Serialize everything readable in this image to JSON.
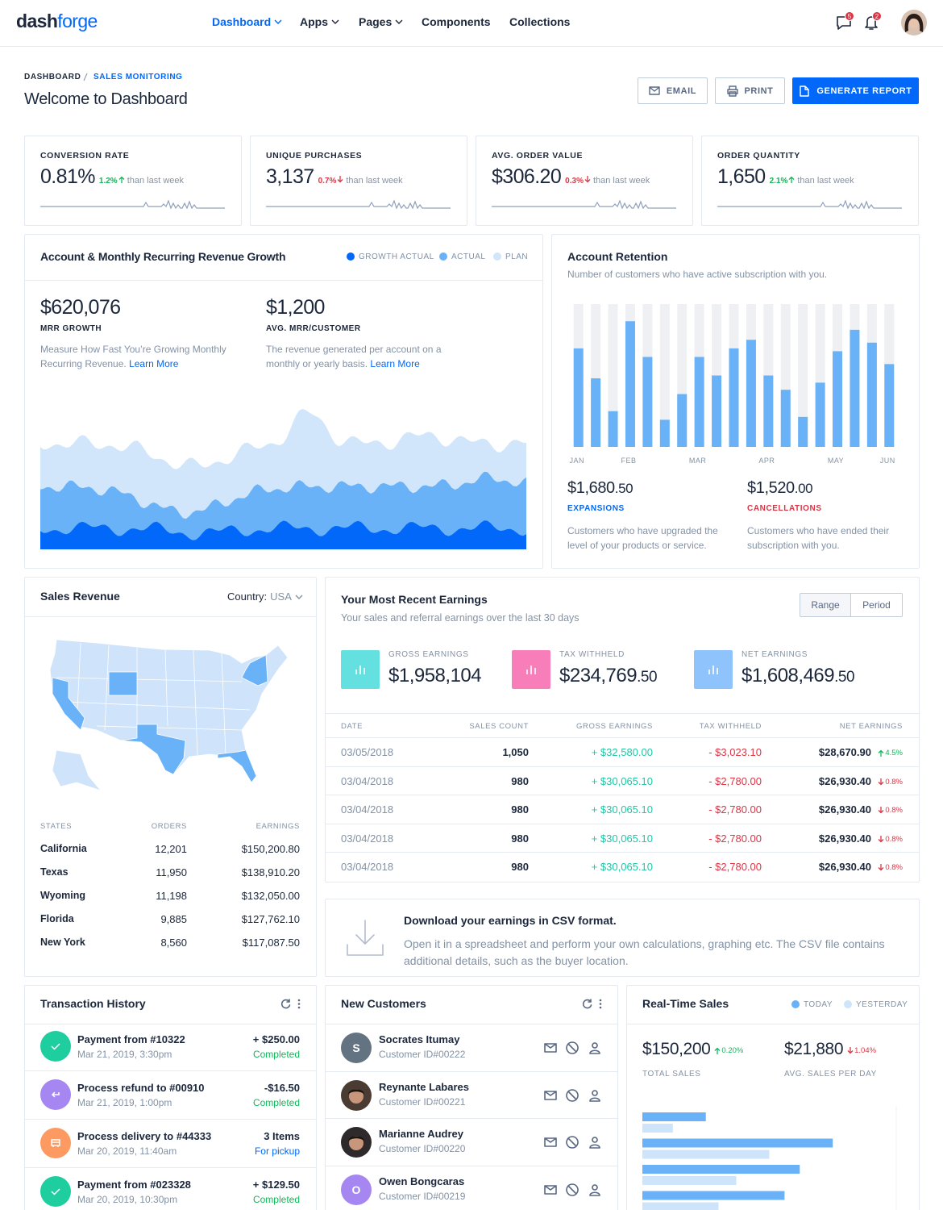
{
  "header": {
    "logo": [
      "dash",
      "forge"
    ],
    "nav": [
      "Dashboard",
      "Apps",
      "Pages",
      "Components",
      "Collections"
    ],
    "message_count": 5,
    "notification_count": 2
  },
  "page_header": {
    "breadcrumb": [
      "DASHBOARD",
      "SALES MONITORING"
    ],
    "title": "Welcome to Dashboard",
    "buttons": [
      "EMAIL",
      "PRINT",
      "GENERATE REPORT"
    ]
  },
  "kpis": [
    {
      "label": "CONVERSION RATE",
      "value": "0.81%",
      "change": "1.2%",
      "trend": "up",
      "note": "than last week"
    },
    {
      "label": "UNIQUE PURCHASES",
      "value": "3,137",
      "change": "0.7%",
      "trend": "down",
      "note": "than last week"
    },
    {
      "label": "AVG. ORDER VALUE",
      "value": "$306.20",
      "change": "0.3%",
      "trend": "down",
      "note": "than last week"
    },
    {
      "label": "ORDER QUANTITY",
      "value": "1,650",
      "change": "2.1%",
      "trend": "up",
      "note": "than last week"
    }
  ],
  "revenue_growth": {
    "title": "Account & Monthly Recurring Revenue Growth",
    "legend": [
      "GROWTH ACTUAL",
      "ACTUAL",
      "PLAN"
    ],
    "legend_colors": [
      "#0168fa",
      "#69b2f8",
      "#d1e6fa"
    ],
    "stats": [
      {
        "value": "$620,076",
        "label": "MRR GROWTH",
        "text": "Measure How Fast You’re Growing Monthly Recurring Revenue.",
        "link": "Learn More"
      },
      {
        "value": "$1,200",
        "label": "AVG. MRR/CUSTOMER",
        "text": "The revenue generated per account on a monthly or yearly basis.",
        "link": "Learn More"
      }
    ]
  },
  "retention": {
    "title": "Account Retention",
    "subtitle": "Number of customers who have active subscription with you.",
    "chart": {
      "type": "bar",
      "categories": [
        "JAN",
        null,
        null,
        "FEB",
        null,
        null,
        null,
        "MAR",
        null,
        null,
        null,
        "APR",
        null,
        null,
        null,
        "MAY",
        null,
        null,
        "JUN"
      ],
      "values": [
        69,
        48,
        25,
        88,
        63,
        19,
        37,
        63,
        50,
        69,
        75,
        50,
        40,
        21,
        45,
        67,
        82,
        73,
        58
      ],
      "ylim": [
        0,
        100
      ],
      "color": "#69b2f8",
      "track_color": "#eef0f4"
    },
    "stats": [
      {
        "value": "$1,680",
        "cents": ".50",
        "label": "EXPANSIONS",
        "color": "#0168fa",
        "text": "Customers who have upgraded the level of your products or service."
      },
      {
        "value": "$1,520",
        "cents": ".00",
        "label": "CANCELLATIONS",
        "color": "#dc3545",
        "text": "Customers who have ended their subscription with you."
      }
    ]
  },
  "sales_revenue": {
    "title": "Sales Revenue",
    "filter_label": "Country:",
    "filter_value": "USA",
    "columns": [
      "STATES",
      "ORDERS",
      "EARNINGS"
    ],
    "rows": [
      [
        "California",
        "12,201",
        "$150,200.80"
      ],
      [
        "Texas",
        "11,950",
        "$138,910.20"
      ],
      [
        "Wyoming",
        "11,198",
        "$132,050.00"
      ],
      [
        "Florida",
        "9,885",
        "$127,762.10"
      ],
      [
        "New York",
        "8,560",
        "$117,087.50"
      ]
    ]
  },
  "earnings": {
    "title": "Your Most Recent Earnings",
    "subtitle": "Your sales and referral earnings over the last 30 days",
    "toggles": [
      "Range",
      "Period"
    ],
    "stats": [
      {
        "label": "GROSS EARNINGS",
        "value": "$1,958,104",
        "cents": "",
        "color": "#65e0e0"
      },
      {
        "label": "TAX WITHHELD",
        "value": "$234,769",
        "cents": ".50",
        "color": "#f77eb9"
      },
      {
        "label": "NET EARNINGS",
        "value": "$1,608,469",
        "cents": ".50",
        "color": "#8fc3fb"
      }
    ],
    "columns": [
      "DATE",
      "SALES COUNT",
      "GROSS EARNINGS",
      "TAX WITHHELD",
      "NET EARNINGS"
    ],
    "rows": [
      {
        "date": "03/05/2018",
        "count": "1,050",
        "gross": "+ $32,580.00",
        "tax": "- $3,023.10",
        "net": "$28,670.90",
        "change": "4.5%",
        "trend": "up"
      },
      {
        "date": "03/04/2018",
        "count": "980",
        "gross": "+ $30,065.10",
        "tax": "- $2,780.00",
        "net": "$26,930.40",
        "change": "0.8%",
        "trend": "down"
      },
      {
        "date": "03/04/2018",
        "count": "980",
        "gross": "+ $30,065.10",
        "tax": "- $2,780.00",
        "net": "$26,930.40",
        "change": "0.8%",
        "trend": "down"
      },
      {
        "date": "03/04/2018",
        "count": "980",
        "gross": "+ $30,065.10",
        "tax": "- $2,780.00",
        "net": "$26,930.40",
        "change": "0.8%",
        "trend": "down"
      },
      {
        "date": "03/04/2018",
        "count": "980",
        "gross": "+ $30,065.10",
        "tax": "- $2,780.00",
        "net": "$26,930.40",
        "change": "0.8%",
        "trend": "down"
      }
    ]
  },
  "csv": {
    "title": "Download your earnings in CSV format.",
    "text": "Open it in a spreadsheet and perform your own calculations, graphing etc. The CSV file contains additional details, such as the buyer location."
  },
  "transactions": {
    "title": "Transaction History",
    "items": [
      {
        "title": "Payment from #10322",
        "date": "Mar 21, 2019, 3:30pm",
        "amount": "+ $250.00",
        "status": "Completed",
        "icon": "check",
        "color": "#1ece9f",
        "status_color": "#10b759"
      },
      {
        "title": "Process refund to #00910",
        "date": "Mar 21, 2019, 1:00pm",
        "amount": "-$16.50",
        "status": "Completed",
        "icon": "return",
        "color": "#a687f1",
        "status_color": "#10b759"
      },
      {
        "title": "Process delivery to #44333",
        "date": "Mar 20, 2019, 11:40am",
        "amount": "3 Items",
        "status": "For pickup",
        "icon": "truck",
        "color": "#fd9a62",
        "status_color": "#0168fa"
      },
      {
        "title": "Payment from #023328",
        "date": "Mar 20, 2019, 10:30pm",
        "amount": "+ $129.50",
        "status": "Completed",
        "icon": "check",
        "color": "#1ece9f",
        "status_color": "#10b759"
      }
    ]
  },
  "customers": {
    "title": "New Customers",
    "items": [
      {
        "name": "Socrates Itumay",
        "id": "Customer ID#00222",
        "initial": "S",
        "color": "#637382"
      },
      {
        "name": "Reynante Labares",
        "id": "Customer ID#00221",
        "color": "#4a3b33"
      },
      {
        "name": "Marianne Audrey",
        "id": "Customer ID#00220",
        "color": "#2e2a2c"
      },
      {
        "name": "Owen Bongcaras",
        "id": "Customer ID#00219",
        "initial": "O",
        "color": "#a687f1"
      }
    ]
  },
  "realtime": {
    "title": "Real-Time Sales",
    "stats": [
      {
        "value": "$150,200",
        "change": "0.20%",
        "trend": "up",
        "label": "TOTAL SALES"
      },
      {
        "value": "$21,880",
        "change": "1.04%",
        "trend": "down",
        "label": "AVG. SALES PER DAY"
      }
    ],
    "chart": {
      "type": "bar",
      "orientation": "horizontal",
      "xlim": [
        0,
        100
      ],
      "series": [
        {
          "name": "TODAY",
          "color": "#69b2f8",
          "values": [
            25,
            75,
            62,
            56
          ]
        },
        {
          "name": "YESTERDAY",
          "color": "#cde4fb",
          "values": [
            12,
            50,
            37,
            30
          ]
        }
      ]
    }
  }
}
